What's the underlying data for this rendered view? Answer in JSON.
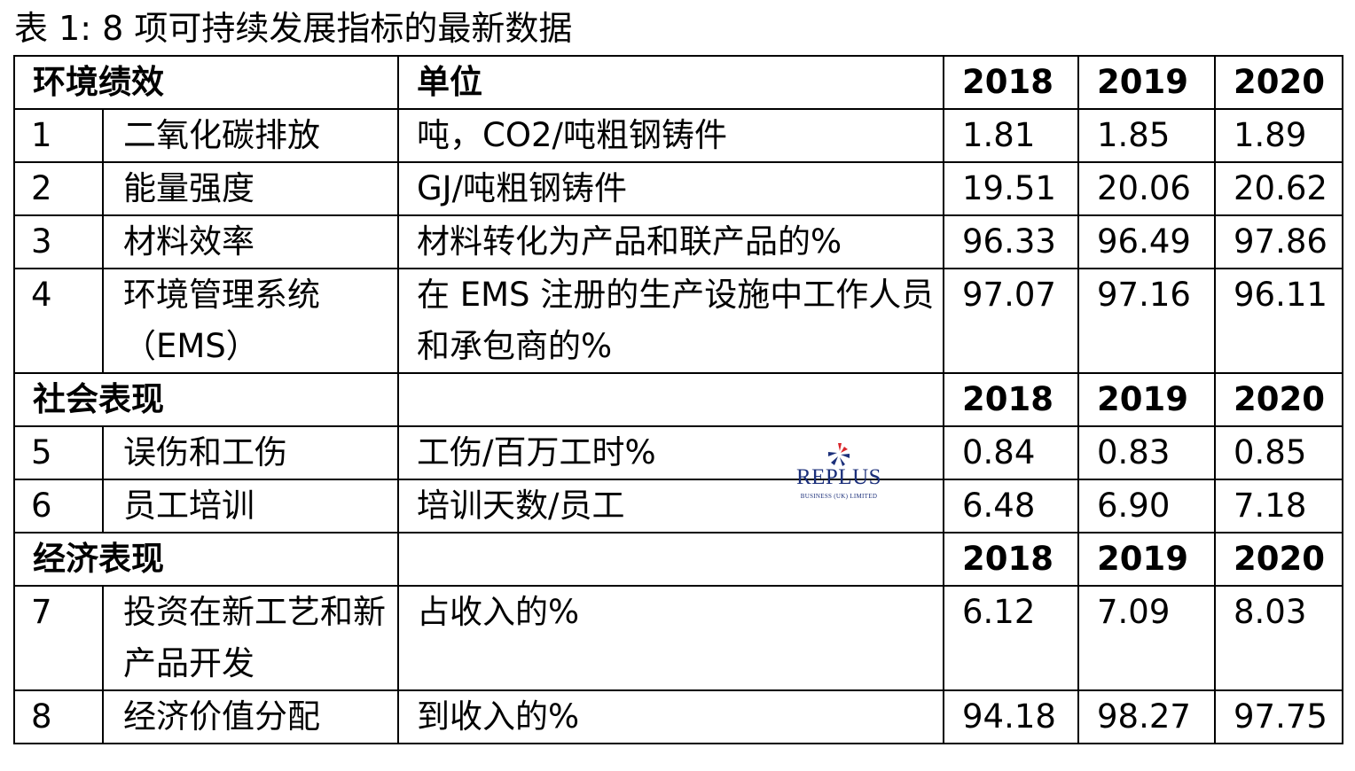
{
  "caption": "表 1: 8 项可持续发展指标的最新数据",
  "sections": [
    {
      "title": "环境绩效",
      "unit_header": "单位",
      "years": [
        "2018",
        "2019",
        "2020"
      ],
      "rows": [
        {
          "no": "1",
          "name": "二氧化碳排放",
          "unit": "吨，CO2/吨粗钢铸件",
          "values": [
            "1.81",
            "1.85",
            "1.89"
          ]
        },
        {
          "no": "2",
          "name": "能量强度",
          "unit": "GJ/吨粗钢铸件",
          "values": [
            "19.51",
            "20.06",
            "20.62"
          ]
        },
        {
          "no": "3",
          "name": "材料效率",
          "unit": "材料转化为产品和联产品的%",
          "values": [
            "96.33",
            "96.49",
            "97.86"
          ]
        },
        {
          "no": "4",
          "name": "环境管理系统（EMS）",
          "unit": "在 EMS 注册的生产设施中工作人员和承包商的%",
          "values": [
            "97.07",
            "97.16",
            "96.11"
          ]
        }
      ]
    },
    {
      "title": "社会表现",
      "unit_header": "",
      "years": [
        "2018",
        "2019",
        "2020"
      ],
      "rows": [
        {
          "no": "5",
          "name": "误伤和工伤",
          "unit": "工伤/百万工时%",
          "values": [
            "0.84",
            "0.83",
            "0.85"
          ]
        },
        {
          "no": "6",
          "name": "员工培训",
          "unit": "培训天数/员工",
          "values": [
            "6.48",
            "6.90",
            "7.18"
          ]
        }
      ]
    },
    {
      "title": "经济表现",
      "unit_header": "",
      "years": [
        "2018",
        "2019",
        "2020"
      ],
      "rows": [
        {
          "no": "7",
          "name": "投资在新工艺和新产品开发",
          "unit": "占收入的%",
          "values": [
            "6.12",
            "7.09",
            "8.03"
          ]
        },
        {
          "no": "8",
          "name": "经济价值分配",
          "unit": "到收入的%",
          "values": [
            "94.18",
            "98.27",
            "97.75"
          ]
        }
      ]
    }
  ],
  "watermark": {
    "name": "REPLUS",
    "sub": "BUSINESS (UK) LIMITED",
    "colors": {
      "blue": "#1b2f7a",
      "red": "#d9262b"
    }
  }
}
